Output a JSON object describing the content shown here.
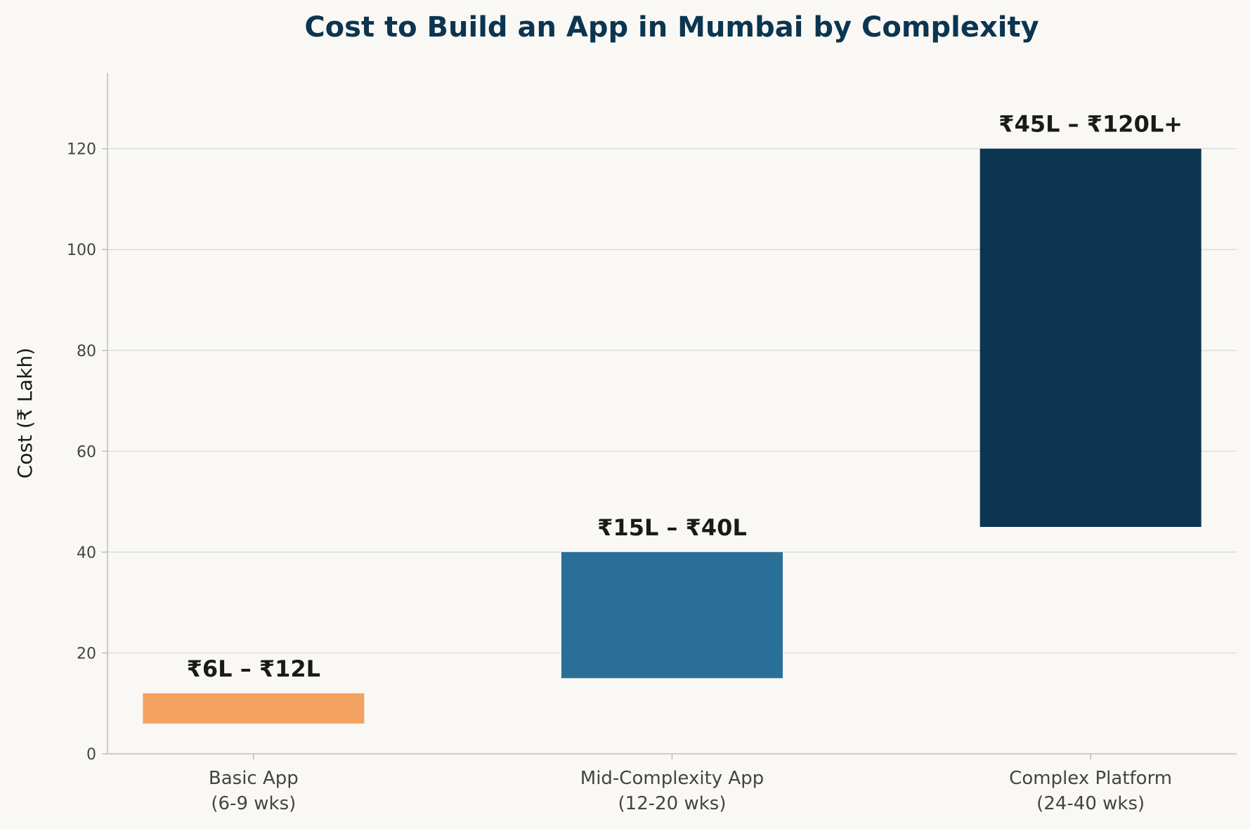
{
  "chart_data": {
    "type": "bar",
    "title": "Cost to Build an App in Mumbai by Complexity",
    "xlabel": "",
    "ylabel": "Cost (₹ Lakh)",
    "ylim": [
      0,
      135
    ],
    "yticks": [
      0,
      20,
      40,
      60,
      80,
      100,
      120
    ],
    "grid": true,
    "categories": [
      [
        "Basic App",
        "(6-9 wks)"
      ],
      [
        "Mid-Complexity App",
        "(12-20 wks)"
      ],
      [
        "Complex Platform",
        "(24-40 wks)"
      ]
    ],
    "bars": [
      {
        "low": 6,
        "high": 12,
        "label": "₹6L – ₹12L",
        "color": "#f4a261"
      },
      {
        "low": 15,
        "high": 40,
        "label": "₹15L – ₹40L",
        "color": "#2a6f97"
      },
      {
        "low": 45,
        "high": 120,
        "label": "₹45L – ₹120L+",
        "color": "#0b3550"
      }
    ]
  }
}
